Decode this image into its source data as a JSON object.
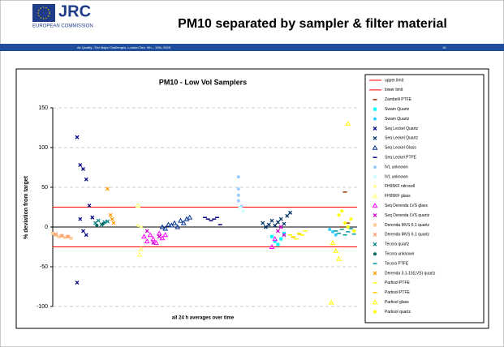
{
  "header": {
    "logo": "JRC",
    "org": "EUROPEAN COMMISSION",
    "title": "PM10 separated by sampler & filter material",
    "footer": "Air Quality -The Major Challenges, London Dec. 9th – 10th, 2009",
    "page": 16
  },
  "chart_data": {
    "type": "scatter",
    "title": "PM10 - Low Vol Samplers",
    "y_label": "% deviation from target",
    "x_label": "all 24 h averages over time",
    "xlim": [
      0,
      100
    ],
    "ylim": [
      -100,
      150
    ],
    "yticks": [
      -100,
      -50,
      0,
      50,
      100,
      150
    ],
    "grid": true,
    "legend": "right",
    "series": [
      {
        "name": "upper limit",
        "color": "#ff0000",
        "marker": "line",
        "x": [
          0,
          100
        ],
        "values": [
          25,
          25
        ]
      },
      {
        "name": "lower limit",
        "color": "#ff0000",
        "marker": "line",
        "x": [
          0,
          100
        ],
        "values": [
          -25,
          -25
        ]
      },
      {
        "name": "Zambelli PTFE",
        "color": "#993300",
        "marker": "dash",
        "x": [
          96,
          97,
          95
        ],
        "values": [
          44,
          5,
          0
        ]
      },
      {
        "name": "Swam Quartz",
        "color": "#00ffff",
        "marker": "square",
        "x": [
          72,
          73,
          74,
          75,
          76
        ],
        "values": [
          -12,
          -18,
          -22,
          -15,
          -8
        ]
      },
      {
        "name": "Swam Quartz",
        "color": "#33ccff",
        "marker": "circle",
        "x": [
          91,
          92,
          93
        ],
        "values": [
          -3,
          -6,
          -10
        ]
      },
      {
        "name": "Seq Leckel Quartz",
        "color": "#000080",
        "marker": "x",
        "x": [
          8,
          9,
          10,
          11,
          12,
          9,
          10,
          11,
          8,
          13
        ],
        "values": [
          113,
          78,
          73,
          60,
          27,
          10,
          -5,
          -10,
          -70,
          12
        ]
      },
      {
        "name": "Seq Leckel Quartz",
        "color": "#003366",
        "marker": "x",
        "x": [
          69,
          70,
          71,
          72,
          73,
          74,
          75,
          76,
          77,
          78
        ],
        "values": [
          5,
          0,
          3,
          8,
          2,
          6,
          10,
          4,
          14,
          18
        ]
      },
      {
        "name": "Seq Leckel Glass",
        "color": "#003399",
        "marker": "triangle",
        "x": [
          36,
          37,
          38,
          39,
          40,
          41,
          42,
          43,
          44,
          45
        ],
        "values": [
          0,
          -2,
          3,
          2,
          5,
          0,
          8,
          5,
          10,
          12
        ]
      },
      {
        "name": "Seq Leckel PTFE",
        "color": "#000080",
        "marker": "dash",
        "x": [
          50,
          51,
          52,
          53,
          54,
          55
        ],
        "values": [
          12,
          10,
          8,
          10,
          12,
          3
        ]
      },
      {
        "name": "IVL unknown",
        "color": "#99ccff",
        "marker": "circle",
        "x": [
          61,
          61,
          61,
          61,
          62
        ],
        "values": [
          63,
          48,
          40,
          33,
          26
        ]
      },
      {
        "name": "IVL unknown",
        "color": "#ccffff",
        "marker": "circle",
        "x": [
          61.5,
          62.5
        ],
        "values": [
          25,
          20
        ]
      },
      {
        "name": "FH95KF nitrocell",
        "color": "#ffff99",
        "marker": "circle",
        "x": [
          28,
          29
        ],
        "values": [
          2,
          0
        ]
      },
      {
        "name": "FH95KF glass",
        "color": "#ffff66",
        "marker": "triangle",
        "x": [
          28,
          28.5,
          29
        ],
        "values": [
          27,
          -35,
          -28
        ]
      },
      {
        "name": "Seq Derenda LVS glass",
        "color": "#ff00ff",
        "marker": "triangle",
        "x": [
          30,
          31,
          32,
          33,
          34,
          35,
          36,
          37,
          72,
          73
        ],
        "values": [
          -12,
          -18,
          -10,
          -15,
          -20,
          -8,
          -14,
          -10,
          -25,
          -15
        ]
      },
      {
        "name": "Seq Derenda LVS quartz",
        "color": "#cc00cc",
        "marker": "x",
        "x": [
          31,
          33,
          35,
          74,
          75,
          76
        ],
        "values": [
          -5,
          -20,
          -12,
          -5,
          0,
          -10
        ]
      },
      {
        "name": "Derenda MVS 6.1 quartz",
        "color": "#ffcc99",
        "marker": "square",
        "x": [
          0,
          1,
          2,
          3,
          4,
          5,
          6
        ],
        "values": [
          -8,
          -10,
          -12,
          -11,
          -13,
          -12,
          -14
        ]
      },
      {
        "name": "Derenda MVS 6.1 quartz",
        "color": "#ff9966",
        "marker": "x",
        "x": [
          1,
          3,
          5
        ],
        "values": [
          -9,
          -11,
          -12
        ]
      },
      {
        "name": "Tecora quartz",
        "color": "#008080",
        "marker": "x",
        "x": [
          14,
          15,
          16,
          17,
          18
        ],
        "values": [
          5,
          8,
          3,
          6,
          7
        ]
      },
      {
        "name": "Tecora unknown",
        "color": "#006666",
        "marker": "circle",
        "x": [
          14.5,
          16.5
        ],
        "values": [
          2,
          4
        ]
      },
      {
        "name": "Tecora PTFE",
        "color": "#009999",
        "marker": "dash",
        "x": [
          93,
          94,
          95,
          96,
          97,
          98,
          99
        ],
        "values": [
          -5,
          -8,
          -3,
          -10,
          -6,
          -2,
          -9
        ]
      },
      {
        "name": "Derenda 3.1-15(LVS) quartz",
        "color": "#ff9900",
        "marker": "x",
        "x": [
          18,
          19,
          19.5,
          20
        ],
        "values": [
          48,
          15,
          10,
          5
        ]
      },
      {
        "name": "Partisol PTFE",
        "color": "#ffff00",
        "marker": "dash",
        "x": [
          78,
          79,
          80,
          81,
          82,
          83
        ],
        "values": [
          -10,
          -12,
          -15,
          -8,
          -10,
          -5
        ]
      },
      {
        "name": "Partisol PTFE",
        "color": "#ffcc00",
        "marker": "dash",
        "x": [
          79,
          81
        ],
        "values": [
          -13,
          -9
        ]
      },
      {
        "name": "Partisol glass",
        "color": "#ffff00",
        "marker": "triangle",
        "x": [
          97,
          92,
          93,
          94,
          91.5
        ],
        "values": [
          130,
          -20,
          -30,
          -40,
          -95
        ]
      },
      {
        "name": "Partisol quartz",
        "color": "#ffff00",
        "marker": "circle",
        "x": [
          94,
          95,
          96,
          97,
          98,
          99
        ],
        "values": [
          15,
          20,
          5,
          0,
          10,
          -5
        ]
      }
    ]
  }
}
